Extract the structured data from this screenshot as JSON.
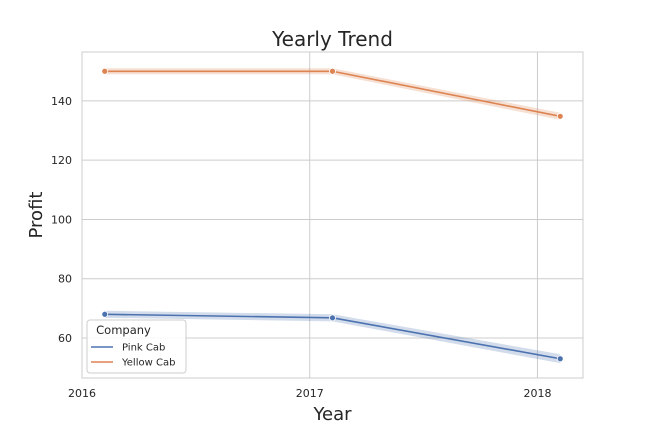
{
  "chart_data": {
    "type": "line",
    "title": "Yearly Trend",
    "xlabel": "Year",
    "ylabel": "Profit",
    "x": [
      2016.1,
      2017.1,
      2018.1
    ],
    "xlim": [
      2016.0,
      2018.2
    ],
    "xticks": [
      2016,
      2017,
      2018
    ],
    "xtick_labels": [
      "2016",
      "2017",
      "2018"
    ],
    "ylim": [
      46.5,
      156.5
    ],
    "yticks": [
      60,
      80,
      100,
      120,
      140
    ],
    "ytick_labels": [
      "60",
      "80",
      "100",
      "120",
      "140"
    ],
    "grid": true,
    "legend": {
      "title": "Company",
      "position": "lower-left"
    },
    "series": [
      {
        "name": "Pink Cab",
        "color": "#4c72b0",
        "values": [
          68.0,
          66.8,
          53.0
        ],
        "band": [
          1.2,
          1.2,
          1.5
        ]
      },
      {
        "name": "Yellow Cab",
        "color": "#dd8452",
        "values": [
          150.0,
          150.0,
          134.8
        ],
        "band": [
          1.0,
          1.0,
          1.2
        ]
      }
    ]
  }
}
